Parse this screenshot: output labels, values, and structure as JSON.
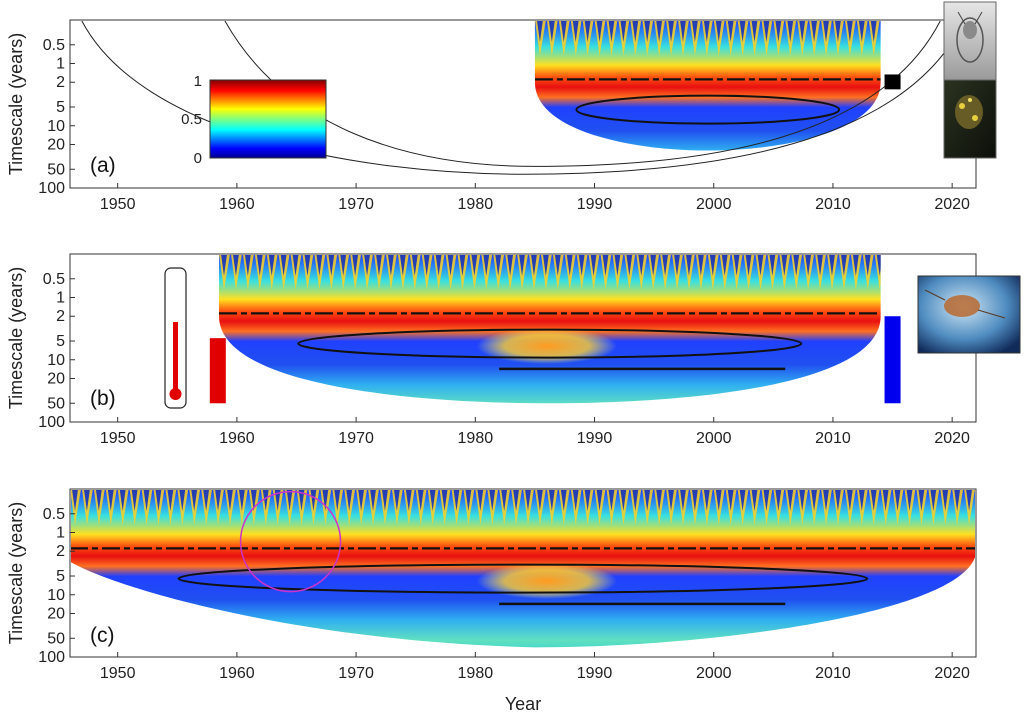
{
  "chart_data": {
    "type": "heatmap",
    "description_kind": "wavelet coherence spectrum",
    "xlabel": "Year",
    "ylabel": "Timescale (years)",
    "xlim": [
      1946,
      2022
    ],
    "x_ticks": [
      1950,
      1960,
      1970,
      1980,
      1990,
      2000,
      2010,
      2020
    ],
    "y_scale": "log",
    "ylim": [
      0.2,
      100
    ],
    "y_ticks": [
      0.5,
      1,
      2,
      5,
      10,
      20,
      50,
      100
    ],
    "y_tick_labels": [
      "0.5",
      "1",
      "2",
      "5",
      "10",
      "20",
      "50",
      "100"
    ],
    "colorbar": {
      "min": 0,
      "max": 1,
      "ticks": [
        "0",
        "0.5",
        "1"
      ],
      "colormap": "jet"
    },
    "panels": [
      {
        "label": "(a)",
        "data_start": 1985,
        "data_end": 2014,
        "bar_color": "#000000",
        "bar_year": 2015,
        "bar_range": [
          1.5,
          2.6
        ]
      },
      {
        "label": "(b)",
        "data_start": 1958.5,
        "data_end": 2014,
        "bar_color": "#e00000",
        "bar_year": 1958.4,
        "bar_range": [
          4.5,
          50
        ],
        "bar2_color": "#0000ee",
        "bar2_year": 2015,
        "bar2_range": [
          2.0,
          50
        ]
      },
      {
        "label": "(c)",
        "data_start": 1946,
        "data_end": 2022
      }
    ],
    "panel_c_circle": {
      "year": 1964.5,
      "timescale": 1.4,
      "color": "#cc33cc"
    }
  },
  "icons": [
    "thermometer-icon",
    "zooplankton-photo-icon",
    "copepod-photo-icon"
  ]
}
